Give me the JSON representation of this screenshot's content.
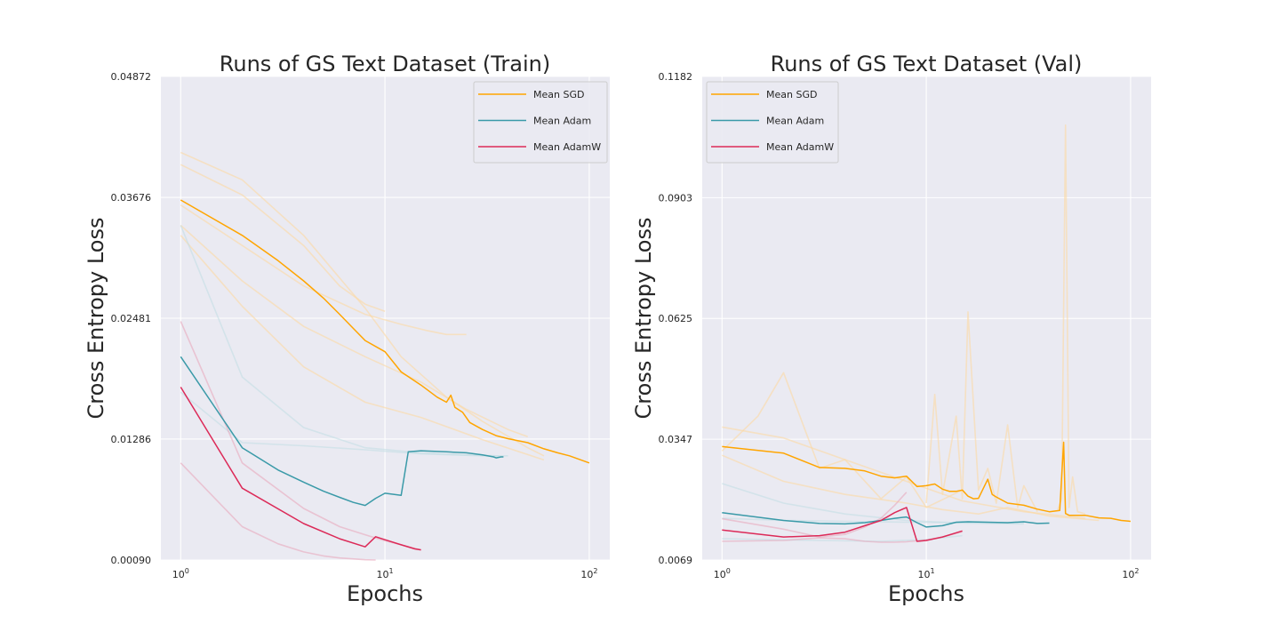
{
  "chart_data": [
    {
      "type": "line",
      "title": "Runs of GS Text Dataset (Train)",
      "xlabel": "Epochs",
      "ylabel": "Cross Entropy Loss",
      "xscale": "log",
      "xlim": [
        0.8,
        126
      ],
      "xticks": [
        {
          "value": 1,
          "base": "10",
          "exp": "0"
        },
        {
          "value": 10,
          "base": "10",
          "exp": "1"
        },
        {
          "value": 100,
          "base": "10",
          "exp": "2"
        }
      ],
      "yticks": [
        "0.00090",
        "0.01286",
        "0.02481",
        "0.03676",
        "0.04872"
      ],
      "grid": true,
      "legend_position": "top-right",
      "series": [
        {
          "name": "Mean SGD",
          "color": "#ffa500",
          "x": [
            1,
            2,
            3,
            4,
            5,
            6,
            7,
            8,
            10,
            12,
            15,
            18,
            20,
            21,
            22,
            24,
            26,
            30,
            35,
            40,
            50,
            60,
            70,
            80,
            100
          ],
          "y": [
            0.0365,
            0.033,
            0.0305,
            0.0285,
            0.0268,
            0.0252,
            0.0238,
            0.0226,
            0.0215,
            0.0195,
            0.0182,
            0.017,
            0.0165,
            0.0172,
            0.016,
            0.0155,
            0.0145,
            0.0138,
            0.0132,
            0.0129,
            0.0125,
            0.0119,
            0.0115,
            0.0112,
            0.0105
          ]
        },
        {
          "name": "Mean Adam",
          "color": "#3a9aa8",
          "x": [
            1,
            2,
            3,
            4,
            5,
            6,
            7,
            8,
            9,
            10,
            12,
            13,
            15,
            20,
            25,
            30,
            34,
            35,
            37,
            38
          ],
          "y": [
            0.021,
            0.012,
            0.0098,
            0.0086,
            0.0077,
            0.0071,
            0.0066,
            0.0063,
            0.007,
            0.0075,
            0.0073,
            0.0116,
            0.0117,
            0.0116,
            0.0115,
            0.0113,
            0.0111,
            0.011,
            0.0111,
            0.0111
          ]
        },
        {
          "name": "Mean AdamW",
          "color": "#dc2a58",
          "x": [
            1,
            2,
            4,
            6,
            8,
            9,
            10,
            12,
            14,
            15
          ],
          "y": [
            0.018,
            0.008,
            0.0045,
            0.003,
            0.0022,
            0.0032,
            0.0029,
            0.0024,
            0.002,
            0.0019
          ]
        }
      ],
      "runs": [
        {
          "color": "#fbd9a3",
          "x": [
            1,
            2,
            4,
            8,
            12,
            20,
            30,
            50,
            60
          ],
          "y": [
            0.0412,
            0.0385,
            0.033,
            0.0258,
            0.021,
            0.017,
            0.0146,
            0.012,
            0.0112
          ]
        },
        {
          "color": "#fbd9a3",
          "x": [
            1,
            2,
            4,
            6,
            8,
            10
          ],
          "y": [
            0.04,
            0.037,
            0.032,
            0.028,
            0.0262,
            0.0255
          ]
        },
        {
          "color": "#fbd9a3",
          "x": [
            1,
            2,
            4,
            8,
            12,
            16,
            20,
            25
          ],
          "y": [
            0.036,
            0.032,
            0.028,
            0.0252,
            0.0242,
            0.0236,
            0.0232,
            0.0232
          ]
        },
        {
          "color": "#fbd9a3",
          "x": [
            1,
            2,
            4,
            8,
            15,
            25,
            40,
            50
          ],
          "y": [
            0.034,
            0.0285,
            0.024,
            0.021,
            0.0185,
            0.0158,
            0.0138,
            0.0131
          ]
        },
        {
          "color": "#fbd9a3",
          "x": [
            1,
            2,
            4,
            8,
            15,
            30,
            60
          ],
          "y": [
            0.033,
            0.026,
            0.02,
            0.0165,
            0.015,
            0.0128,
            0.0108
          ]
        },
        {
          "color": "#c3dde5",
          "x": [
            1,
            2,
            4,
            8,
            15,
            25,
            35,
            40
          ],
          "y": [
            0.034,
            0.019,
            0.014,
            0.012,
            0.0115,
            0.0113,
            0.0112,
            0.0112
          ]
        },
        {
          "color": "#c3dde5",
          "x": [
            1,
            2,
            4,
            8,
            15,
            30,
            36
          ],
          "y": [
            0.0175,
            0.0125,
            0.0122,
            0.0118,
            0.0114,
            0.0112,
            0.0112
          ]
        },
        {
          "color": "#e8a9bd",
          "x": [
            1,
            2,
            4,
            6,
            8,
            10,
            12,
            15
          ],
          "y": [
            0.0245,
            0.0105,
            0.006,
            0.0042,
            0.0034,
            0.0028,
            0.0024,
            0.0019
          ]
        },
        {
          "color": "#e8a9bd",
          "x": [
            1,
            2,
            3,
            4,
            5,
            6,
            8,
            9
          ],
          "y": [
            0.0105,
            0.0042,
            0.0025,
            0.0017,
            0.0013,
            0.0011,
            0.00093,
            0.0009
          ]
        }
      ]
    },
    {
      "type": "line",
      "title": "Runs of GS Text Dataset (Val)",
      "xlabel": "Epochs",
      "ylabel": "Cross Entropy Loss",
      "xscale": "log",
      "xlim": [
        0.8,
        126
      ],
      "xticks": [
        {
          "value": 1,
          "base": "10",
          "exp": "0"
        },
        {
          "value": 10,
          "base": "10",
          "exp": "1"
        },
        {
          "value": 100,
          "base": "10",
          "exp": "2"
        }
      ],
      "yticks": [
        "0.0069",
        "0.0347",
        "0.0625",
        "0.0903",
        "0.1182"
      ],
      "grid": true,
      "legend_position": "top-left",
      "series": [
        {
          "name": "Mean SGD",
          "color": "#ffa500",
          "x": [
            1,
            2,
            3,
            4,
            5,
            6,
            7,
            8,
            9,
            10,
            11,
            12,
            13,
            14,
            15,
            16,
            17,
            18,
            20,
            21,
            22,
            25,
            30,
            35,
            40,
            45,
            47,
            48,
            50,
            60,
            70,
            80,
            90,
            100
          ],
          "y": [
            0.033,
            0.0315,
            0.0282,
            0.028,
            0.0274,
            0.0262,
            0.0258,
            0.0262,
            0.0238,
            0.024,
            0.0244,
            0.0232,
            0.0227,
            0.0227,
            0.023,
            0.0216,
            0.021,
            0.0211,
            0.0255,
            0.022,
            0.0214,
            0.02,
            0.0195,
            0.0186,
            0.018,
            0.0183,
            0.034,
            0.0176,
            0.0172,
            0.0172,
            0.0166,
            0.0165,
            0.016,
            0.0158
          ]
        },
        {
          "name": "Mean Adam",
          "color": "#3a9aa8",
          "x": [
            1,
            2,
            3,
            4,
            5,
            6,
            7,
            8,
            9,
            10,
            12,
            14,
            16,
            20,
            25,
            30,
            35,
            40
          ],
          "y": [
            0.0178,
            0.016,
            0.0153,
            0.0152,
            0.0155,
            0.016,
            0.0165,
            0.0168,
            0.0155,
            0.0145,
            0.0148,
            0.0156,
            0.0157,
            0.0156,
            0.0155,
            0.0157,
            0.0153,
            0.0154
          ]
        },
        {
          "name": "Mean AdamW",
          "color": "#dc2a58",
          "x": [
            1,
            2,
            3,
            4,
            5,
            6,
            7,
            8,
            9,
            10,
            12,
            15
          ],
          "y": [
            0.0138,
            0.0122,
            0.0125,
            0.0133,
            0.0148,
            0.016,
            0.0178,
            0.019,
            0.0112,
            0.0114,
            0.0122,
            0.0136
          ]
        }
      ],
      "runs": [
        {
          "color": "#fbd9a3",
          "x": [
            1,
            2,
            4,
            8,
            15,
            30,
            60
          ],
          "y": [
            0.0375,
            0.035,
            0.03,
            0.025,
            0.0205,
            0.018,
            0.0165
          ]
        },
        {
          "color": "#fbd9a3",
          "x": [
            1,
            1.5,
            2,
            3,
            4,
            6,
            8,
            10,
            15
          ],
          "y": [
            0.032,
            0.04,
            0.05,
            0.028,
            0.03,
            0.021,
            0.026,
            0.019,
            0.023
          ]
        },
        {
          "color": "#fbd9a3",
          "x": [
            1,
            2,
            4,
            8,
            12,
            18,
            25,
            40,
            70
          ],
          "y": [
            0.031,
            0.025,
            0.022,
            0.02,
            0.0185,
            0.0175,
            0.019,
            0.017,
            0.016
          ]
        },
        {
          "color": "#fbd9a3",
          "x": [
            10,
            11,
            12,
            14,
            15,
            16,
            18,
            20,
            22,
            25,
            28,
            30,
            35
          ],
          "y": [
            0.02,
            0.045,
            0.022,
            0.04,
            0.021,
            0.064,
            0.023,
            0.028,
            0.02,
            0.038,
            0.019,
            0.024,
            0.018
          ]
        },
        {
          "color": "#fbd9a3",
          "x": [
            44,
            46,
            48,
            50,
            52,
            55,
            60
          ],
          "y": [
            0.0185,
            0.021,
            0.107,
            0.019,
            0.026,
            0.018,
            0.0175
          ]
        },
        {
          "color": "#c3dde5",
          "x": [
            1,
            2,
            4,
            8,
            15,
            30
          ],
          "y": [
            0.0245,
            0.02,
            0.0175,
            0.016,
            0.0154,
            0.0152
          ]
        },
        {
          "color": "#c3dde5",
          "x": [
            1,
            2,
            4,
            8,
            15,
            30
          ],
          "y": [
            0.0165,
            0.016,
            0.0158,
            0.0156,
            0.0155,
            0.0155
          ]
        },
        {
          "color": "#c3dde5",
          "x": [
            1,
            3,
            6,
            10,
            15
          ],
          "y": [
            0.0118,
            0.0114,
            0.0112,
            0.0116,
            0.0125
          ]
        },
        {
          "color": "#e8a9bd",
          "x": [
            1,
            2,
            3,
            4,
            5,
            6,
            7,
            8
          ],
          "y": [
            0.0164,
            0.014,
            0.0122,
            0.0128,
            0.0145,
            0.0165,
            0.0195,
            0.0225
          ]
        },
        {
          "color": "#e8a9bd",
          "x": [
            1,
            2,
            3,
            4,
            5,
            6,
            7,
            8,
            10,
            12,
            15
          ],
          "y": [
            0.0112,
            0.0114,
            0.012,
            0.0118,
            0.0112,
            0.011,
            0.011,
            0.0111,
            0.0115,
            0.0122,
            0.0134
          ]
        }
      ]
    }
  ]
}
